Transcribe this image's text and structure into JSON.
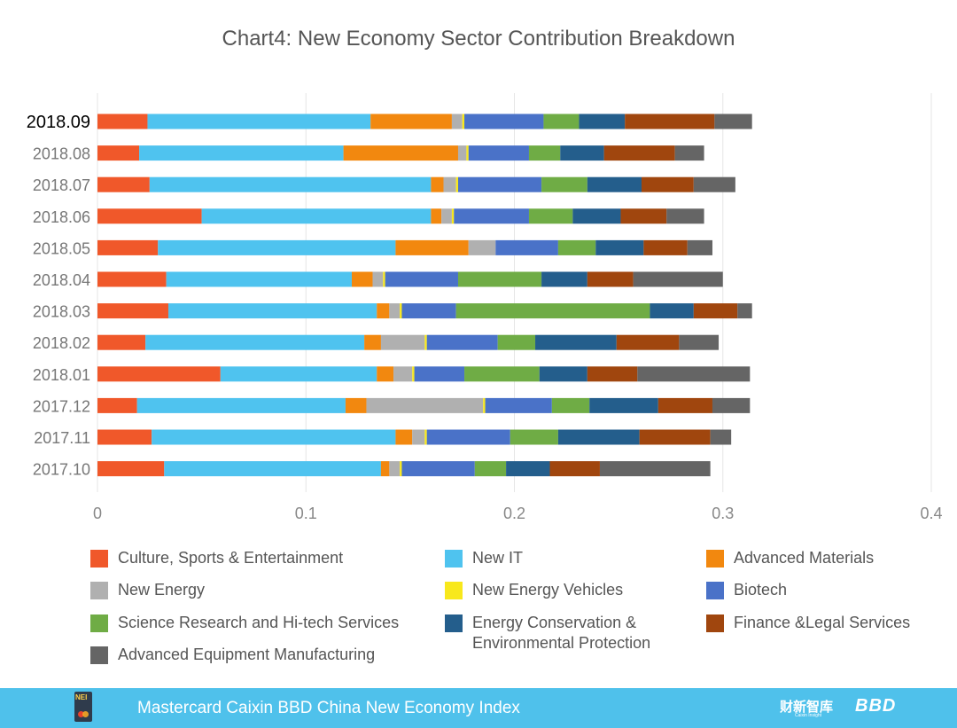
{
  "chart_data": {
    "type": "bar",
    "orientation": "horizontal",
    "stacked": true,
    "title": "Chart4: New Economy Sector Contribution Breakdown",
    "categories": [
      "2018.09",
      "2018.08",
      "2018.07",
      "2018.06",
      "2018.05",
      "2018.04",
      "2018.03",
      "2018.02",
      "2018.01",
      "2017.12",
      "2017.11",
      "2017.10"
    ],
    "highlighted_category": "2018.09",
    "xlim": [
      0,
      0.4
    ],
    "xticks": [
      0,
      0.1,
      0.2,
      0.3,
      0.4
    ],
    "xtick_labels": [
      "0",
      "0.1",
      "0.2",
      "0.3",
      "0.4"
    ],
    "grid": "vertical",
    "legend_position": "bottom",
    "series": [
      {
        "name": "Culture, Sports & Entertainment",
        "color": "#f0582a",
        "values": [
          0.024,
          0.02,
          0.025,
          0.05,
          0.029,
          0.033,
          0.034,
          0.023,
          0.059,
          0.019,
          0.026,
          0.032
        ]
      },
      {
        "name": "New IT",
        "color": "#4fc3ef",
        "values": [
          0.107,
          0.098,
          0.135,
          0.11,
          0.114,
          0.089,
          0.1,
          0.105,
          0.075,
          0.1,
          0.117,
          0.104
        ]
      },
      {
        "name": "Advanced Materials",
        "color": "#f2880f",
        "values": [
          0.039,
          0.055,
          0.006,
          0.005,
          0.035,
          0.01,
          0.006,
          0.008,
          0.008,
          0.01,
          0.008,
          0.004
        ]
      },
      {
        "name": "New Energy",
        "color": "#b0b0b0",
        "values": [
          0.005,
          0.004,
          0.006,
          0.005,
          0.013,
          0.005,
          0.005,
          0.021,
          0.009,
          0.056,
          0.006,
          0.005
        ]
      },
      {
        "name": "New Energy Vehicles",
        "color": "#f8e81c",
        "values": [
          0.001,
          0.001,
          0.001,
          0.001,
          0.0,
          0.001,
          0.001,
          0.001,
          0.001,
          0.001,
          0.001,
          0.001
        ]
      },
      {
        "name": "Biotech",
        "color": "#4a72c8",
        "values": [
          0.038,
          0.029,
          0.04,
          0.036,
          0.03,
          0.035,
          0.026,
          0.034,
          0.024,
          0.032,
          0.04,
          0.035
        ]
      },
      {
        "name": "Science Research and Hi-tech Services",
        "color": "#6fac45",
        "values": [
          0.017,
          0.015,
          0.022,
          0.021,
          0.018,
          0.04,
          0.093,
          0.018,
          0.036,
          0.018,
          0.023,
          0.015
        ]
      },
      {
        "name": "Energy Conservation & Environmental Protection",
        "color": "#245e8c",
        "values": [
          0.022,
          0.021,
          0.026,
          0.023,
          0.023,
          0.022,
          0.021,
          0.039,
          0.023,
          0.033,
          0.039,
          0.021
        ]
      },
      {
        "name": "Finance &Legal Services",
        "color": "#a0460e",
        "values": [
          0.043,
          0.034,
          0.025,
          0.022,
          0.021,
          0.022,
          0.021,
          0.03,
          0.024,
          0.026,
          0.034,
          0.024
        ]
      },
      {
        "name": "Advanced Equipment Manufacturing",
        "color": "#656565",
        "values": [
          0.018,
          0.014,
          0.02,
          0.018,
          0.012,
          0.043,
          0.007,
          0.019,
          0.054,
          0.018,
          0.01,
          0.053
        ]
      }
    ]
  },
  "footer": {
    "title": "Mastercard Caixin BBD China New Economy Index",
    "logo_left_text": "NEI",
    "logo_caixin_text": "财新智库",
    "logo_caixin_sub": "Caixin Insight",
    "logo_bbd_text": "BBD"
  }
}
